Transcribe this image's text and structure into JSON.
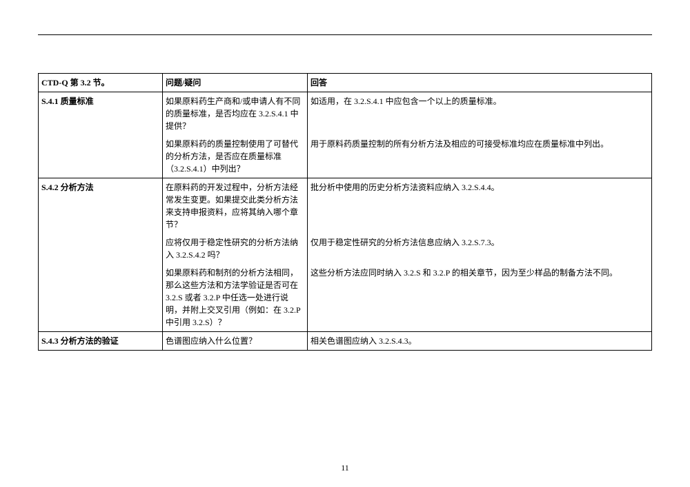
{
  "page_number": "11",
  "table": {
    "headers": {
      "section": "CTD-Q 第 3.2 节。",
      "question": "问题/疑问",
      "answer": "回答"
    },
    "sections": [
      {
        "label": "S.4.1  质量标准",
        "qas": [
          {
            "q": "如果原料药生产商和/或申请人有不同的质量标准，是否均应在 3.2.S.4.1 中提供？",
            "a": "如适用，在 3.2.S.4.1 中应包含一个以上的质量标准。"
          },
          {
            "q": "如果原料药的质量控制使用了可替代的分析方法，是否应在质量标准（3.2.S.4.1）中列出？",
            "a": "用于原料药质量控制的所有分析方法及相应的可接受标准均应在质量标准中列出。"
          }
        ]
      },
      {
        "label": "S.4.2  分析方法",
        "qas": [
          {
            "q": "在原料药的开发过程中，分析方法经常发生变更。如果提交此类分析方法来支持申报资料，应将其纳入哪个章节？",
            "a": "批分析中使用的历史分析方法资料应纳入 3.2.S.4.4。"
          },
          {
            "q": "应将仅用于稳定性研究的分析方法纳入 3.2.S.4.2 吗？",
            "a": "仅用于稳定性研究的分析方法信息应纳入 3.2.S.7.3。"
          },
          {
            "q": "如果原料药和制剂的分析方法相同，那么这些方法和方法学验证是否可在 3.2.S 或者 3.2.P 中任选一处进行说明，并附上交叉引用（例如：在 3.2.P 中引用 3.2.S）？",
            "a": "这些分析方法应同时纳入 3.2.S 和 3.2.P 的相关章节，因为至少样品的制备方法不同。"
          }
        ]
      },
      {
        "label": "S.4.3  分析方法的验证",
        "qas": [
          {
            "q": "色谱图应纳入什么位置？",
            "a": "相关色谱图应纳入 3.2.S.4.3。"
          }
        ]
      }
    ]
  }
}
